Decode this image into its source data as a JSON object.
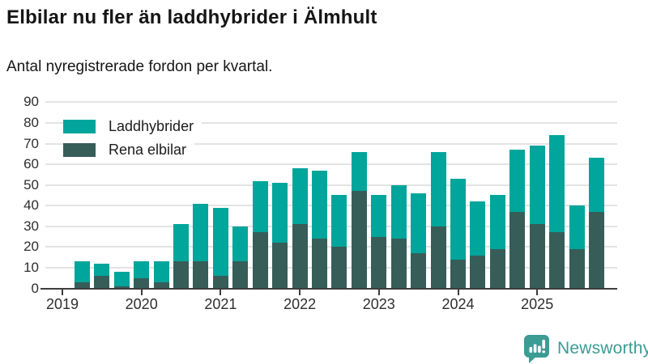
{
  "header": {
    "title": "Elbilar nu fler än laddhybrider i Älmhult",
    "subtitle": "Antal nyregistrerade fordon per kvartal."
  },
  "chart_data": {
    "type": "bar",
    "stacked": true,
    "title": "Elbilar nu fler än laddhybrider i Älmhult",
    "subtitle": "Antal nyregistrerade fordon per kvartal.",
    "categories": [
      "2019 Q1",
      "2019 Q2",
      "2019 Q3",
      "2019 Q4",
      "2020 Q1",
      "2020 Q2",
      "2020 Q3",
      "2020 Q4",
      "2021 Q1",
      "2021 Q2",
      "2021 Q3",
      "2021 Q4",
      "2022 Q1",
      "2022 Q2",
      "2022 Q3",
      "2022 Q4",
      "2023 Q1",
      "2023 Q2",
      "2023 Q3",
      "2023 Q4",
      "2024 Q1",
      "2024 Q2",
      "2024 Q3",
      "2024 Q4",
      "2025 Q1",
      "2025 Q2",
      "2025 Q3",
      "2025 Q4"
    ],
    "series": [
      {
        "name": "Laddhybrider",
        "color": "#00a59b",
        "stack_position": "top",
        "values": [
          0,
          10,
          6,
          7,
          8,
          10,
          18,
          28,
          33,
          17,
          25,
          29,
          27,
          33,
          25,
          19,
          20,
          26,
          29,
          36,
          39,
          26,
          26,
          30,
          38,
          47,
          21,
          26
        ]
      },
      {
        "name": "Rena elbilar",
        "color": "#375d59",
        "stack_position": "bottom",
        "values": [
          0,
          3,
          6,
          1,
          5,
          3,
          13,
          13,
          6,
          13,
          27,
          22,
          31,
          24,
          20,
          47,
          25,
          24,
          17,
          30,
          14,
          16,
          19,
          37,
          31,
          27,
          19,
          37
        ]
      }
    ],
    "totals": [
      0,
      13,
      12,
      8,
      13,
      13,
      31,
      41,
      39,
      30,
      52,
      51,
      58,
      57,
      45,
      66,
      45,
      50,
      46,
      66,
      53,
      42,
      45,
      67,
      69,
      74,
      40,
      63
    ],
    "ylim": [
      0,
      90
    ],
    "yticks": [
      0,
      10,
      20,
      30,
      40,
      50,
      60,
      70,
      80,
      90
    ],
    "xtick_labels": [
      "2019",
      "2020",
      "2021",
      "2022",
      "2023",
      "2024",
      "2025"
    ],
    "grid": true,
    "legend_position": "top-left-inside",
    "gridline_color": "#e3e3e3",
    "axis_color": "#3d3d3d"
  },
  "footer": {
    "brand": "Newsworthy",
    "brand_color": "#3b9c94",
    "logo_icon": "bar-chart-speech-bubble-icon"
  }
}
